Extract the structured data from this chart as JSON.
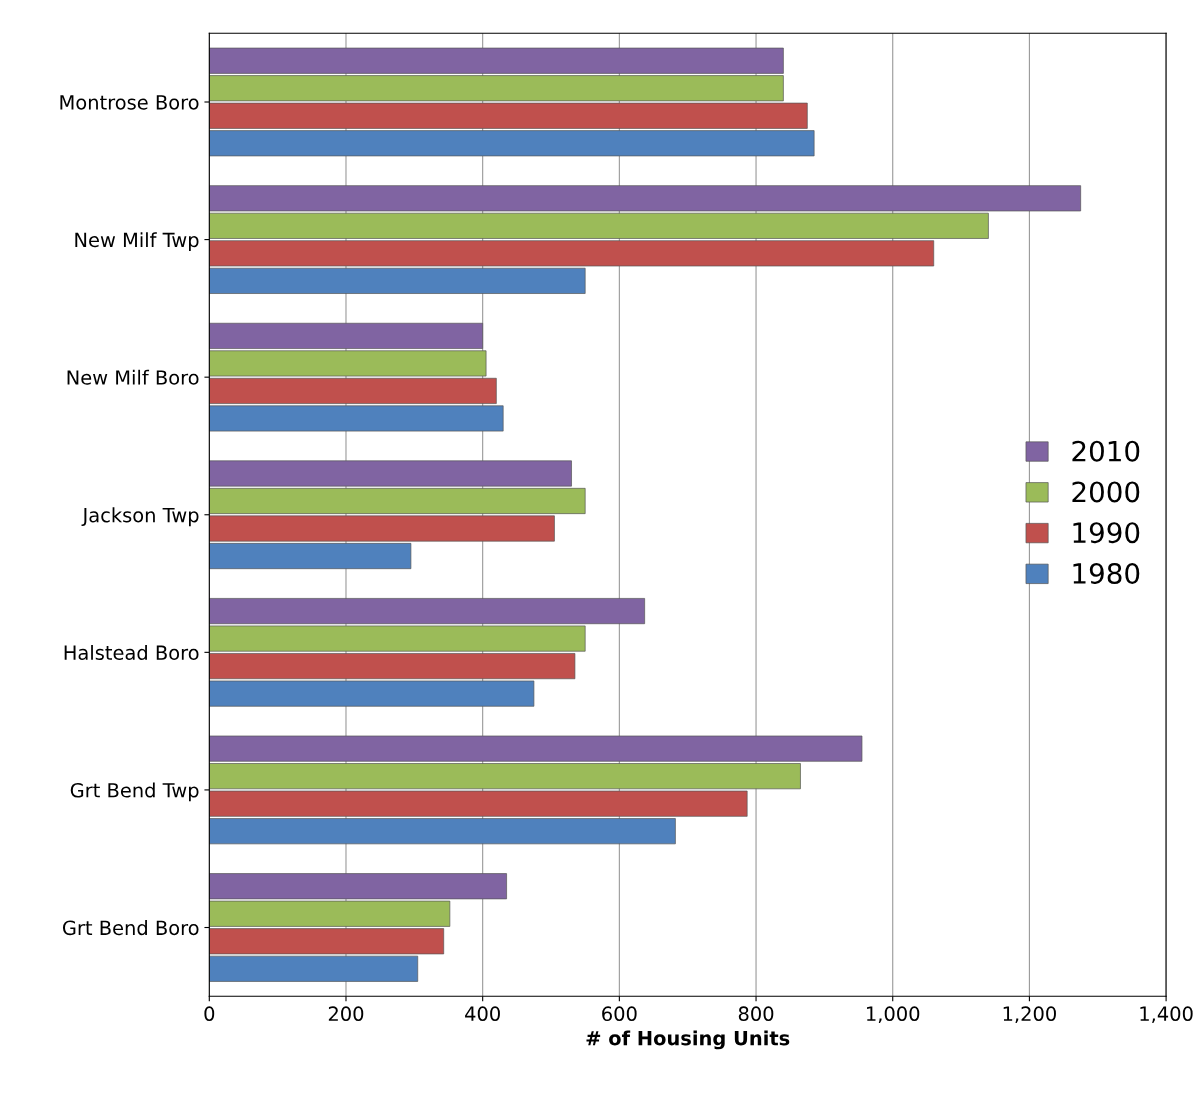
{
  "chart_data": {
    "type": "bar",
    "orientation": "horizontal",
    "xlabel": "# of Housing Units",
    "categories": [
      "Montrose Boro",
      "New Milf Twp",
      "New Milf Boro",
      "Jackson Twp",
      "Halstead Boro",
      "Grt Bend Twp",
      "Grt Bend Boro"
    ],
    "series": [
      {
        "name": "2010",
        "color": "#8064a2",
        "values": [
          840,
          1275,
          400,
          530,
          637,
          955,
          435
        ]
      },
      {
        "name": "2000",
        "color": "#9bbb59",
        "values": [
          840,
          1140,
          405,
          550,
          550,
          865,
          352
        ]
      },
      {
        "name": "1990",
        "color": "#c0504d",
        "values": [
          875,
          1060,
          420,
          505,
          535,
          787,
          343
        ]
      },
      {
        "name": "1980",
        "color": "#4f81bd",
        "values": [
          885,
          550,
          430,
          295,
          475,
          682,
          305
        ]
      }
    ],
    "xlim": [
      0,
      1400
    ],
    "xticks": [
      0,
      200,
      400,
      600,
      800,
      {
        "value": 1000,
        "label": "1,000"
      },
      {
        "value": 1200,
        "label": "1,200"
      },
      {
        "value": 1400,
        "label": "1,400"
      }
    ],
    "grid": "x",
    "legend": "right"
  }
}
